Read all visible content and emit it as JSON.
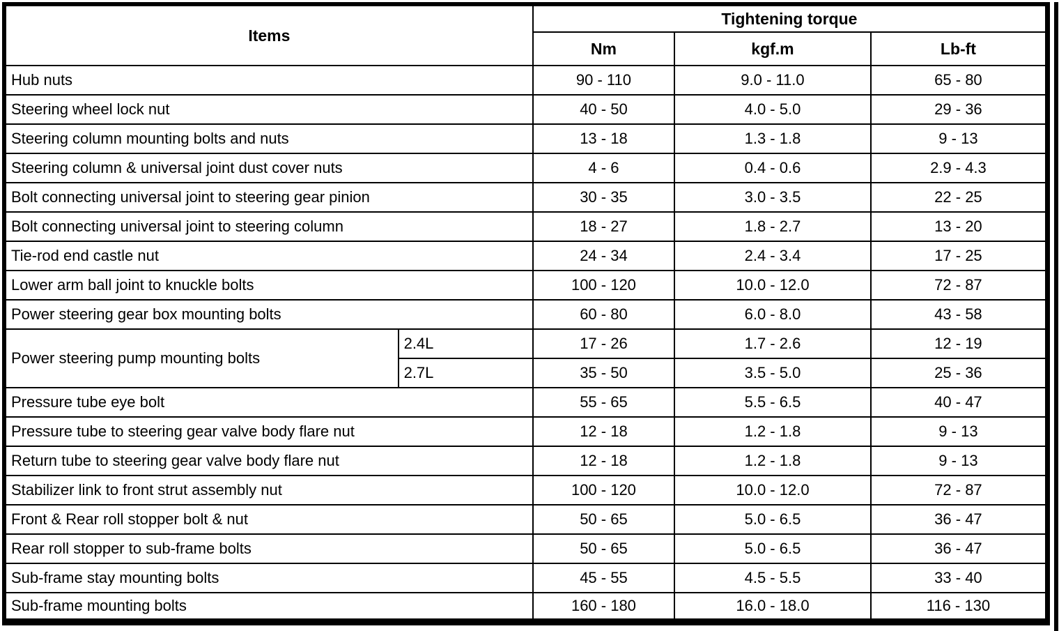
{
  "table": {
    "items_header": "Items",
    "group_header": "Tightening torque",
    "unit_headers": [
      "Nm",
      "kgf.m",
      "Lb-ft"
    ],
    "rows": [
      {
        "item": "Hub nuts",
        "nm": "90 - 110",
        "kgfm": "9.0 - 11.0",
        "lbft": "65 - 80"
      },
      {
        "item": "Steering wheel lock nut",
        "nm": "40 - 50",
        "kgfm": "4.0 - 5.0",
        "lbft": "29 - 36"
      },
      {
        "item": "Steering column mounting bolts and nuts",
        "nm": "13 - 18",
        "kgfm": "1.3 - 1.8",
        "lbft": "9 - 13"
      },
      {
        "item": "Steering column & universal joint dust cover nuts",
        "nm": "4 - 6",
        "kgfm": "0.4 - 0.6",
        "lbft": "2.9 - 4.3"
      },
      {
        "item": "Bolt connecting universal joint to steering gear pinion",
        "nm": "30 - 35",
        "kgfm": "3.0 - 3.5",
        "lbft": "22 - 25"
      },
      {
        "item": "Bolt connecting universal joint to steering column",
        "nm": "18 - 27",
        "kgfm": "1.8 - 2.7",
        "lbft": "13 - 20"
      },
      {
        "item": "Tie-rod end castle nut",
        "nm": "24 - 34",
        "kgfm": "2.4 - 3.4",
        "lbft": "17 - 25"
      },
      {
        "item": "Lower arm ball joint to knuckle bolts",
        "nm": "100 - 120",
        "kgfm": "10.0 - 12.0",
        "lbft": "72 - 87"
      },
      {
        "item": "Power steering gear box mounting bolts",
        "nm": "60 - 80",
        "kgfm": "6.0 - 8.0",
        "lbft": "43 - 58"
      },
      {
        "item": "Power steering pump mounting bolts",
        "item_rowspan": 2,
        "variant": "2.4L",
        "nm": "17 - 26",
        "kgfm": "1.7 - 2.6",
        "lbft": "12 - 19"
      },
      {
        "variant": "2.7L",
        "nm": "35 - 50",
        "kgfm": "3.5 - 5.0",
        "lbft": "25 - 36"
      },
      {
        "item": "Pressure tube eye bolt",
        "nm": "55 - 65",
        "kgfm": "5.5 - 6.5",
        "lbft": "40 - 47"
      },
      {
        "item": "Pressure tube to steering gear valve body flare nut",
        "nm": "12 - 18",
        "kgfm": "1.2 - 1.8",
        "lbft": "9 - 13"
      },
      {
        "item": "Return tube to steering gear valve body flare nut",
        "nm": "12 - 18",
        "kgfm": "1.2 - 1.8",
        "lbft": "9 - 13"
      },
      {
        "item": "Stabilizer link to front strut assembly nut",
        "nm": "100 - 120",
        "kgfm": "10.0 - 12.0",
        "lbft": "72 - 87"
      },
      {
        "item": "Front & Rear roll stopper bolt & nut",
        "nm": "50 - 65",
        "kgfm": "5.0 - 6.5",
        "lbft": "36 - 47"
      },
      {
        "item": "Rear roll stopper to sub-frame bolts",
        "nm": "50 - 65",
        "kgfm": "5.0 - 6.5",
        "lbft": "36 - 47"
      },
      {
        "item": "Sub-frame stay mounting bolts",
        "nm": "45 - 55",
        "kgfm": "4.5 - 5.5",
        "lbft": "33 - 40"
      },
      {
        "item": "Sub-frame mounting bolts",
        "nm": "160 - 180",
        "kgfm": "16.0 - 18.0",
        "lbft": "116 - 130"
      }
    ]
  },
  "colors": {
    "line": "#000000",
    "background": "#ffffff"
  }
}
